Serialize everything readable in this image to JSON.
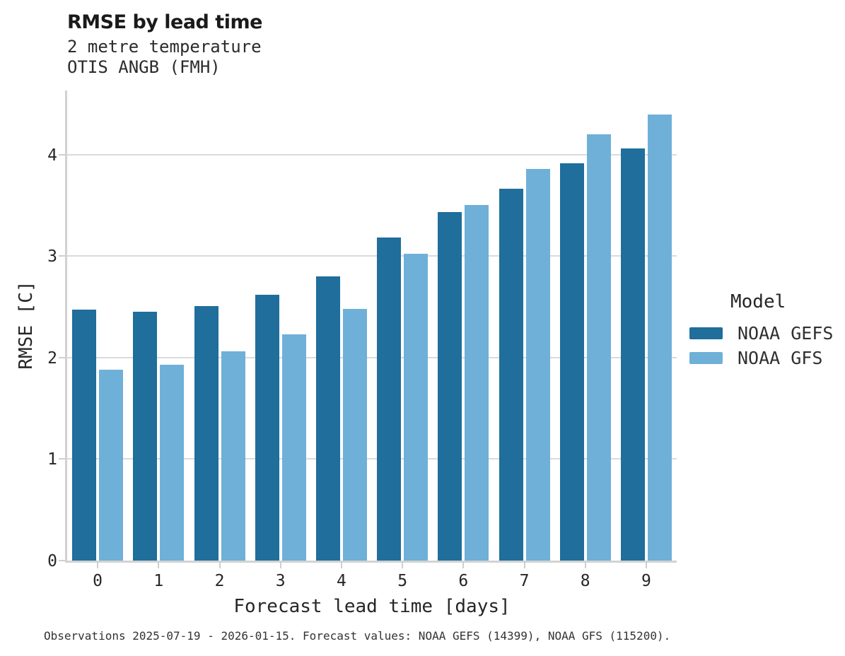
{
  "header": {
    "title": "RMSE by lead time",
    "subtitle_line1": "2 metre temperature",
    "subtitle_line2": "OTIS ANGB (FMH)"
  },
  "chart_data": {
    "type": "bar",
    "title": "RMSE by lead time",
    "subtitle": [
      "2 metre temperature",
      "OTIS ANGB (FMH)"
    ],
    "categories": [
      "0",
      "1",
      "2",
      "3",
      "4",
      "5",
      "6",
      "7",
      "8",
      "9"
    ],
    "series": [
      {
        "name": "NOAA GEFS",
        "color": "#1f6e9c",
        "values": [
          2.47,
          2.45,
          2.51,
          2.62,
          2.8,
          3.18,
          3.43,
          3.66,
          3.91,
          4.06
        ]
      },
      {
        "name": "NOAA GFS",
        "color": "#6fb0d8",
        "values": [
          1.88,
          1.93,
          2.06,
          2.23,
          2.48,
          3.02,
          3.5,
          3.86,
          4.2,
          4.39
        ]
      }
    ],
    "xlabel": "Forecast lead time [days]",
    "ylabel": "RMSE [C]",
    "yticks": [
      0,
      1,
      2,
      3,
      4
    ],
    "ylim": [
      0,
      4.63
    ],
    "grid": "horizontal",
    "legend_title": "Model",
    "legend_position": "right",
    "bar_colors": {
      "noaa_gefs": "#1f6e9c",
      "noaa_gfs": "#6fb0d8"
    }
  },
  "legend": {
    "title": "Model",
    "items": [
      {
        "label": "NOAA GEFS",
        "color": "#1f6e9c"
      },
      {
        "label": "NOAA GFS",
        "color": "#6fb0d8"
      }
    ]
  },
  "axes": {
    "xlabel": "Forecast lead time [days]",
    "ylabel": "RMSE [C]"
  },
  "caption": "Observations 2025-07-19 - 2026-01-15. Forecast values: NOAA GEFS (14399), NOAA GFS (115200)."
}
